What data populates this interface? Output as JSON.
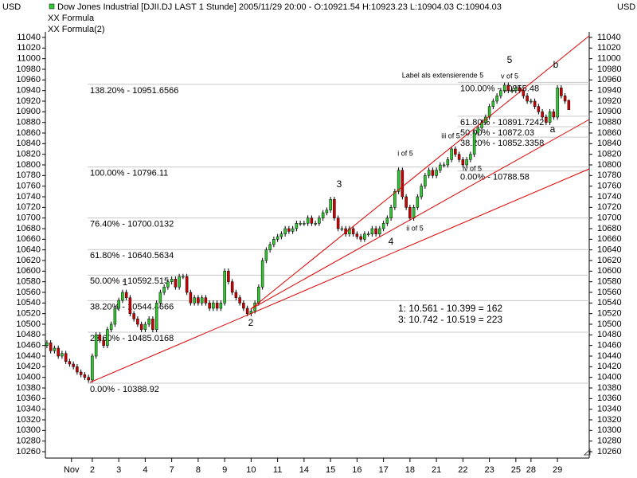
{
  "chart_data": {
    "type": "candlestick",
    "title": "Dow Jones Industrial [DJII.DJ LAST 1 Stunde] 2005/11/29 20:00 - O:10921.54 H:10923.23 L:10904.03 C:10904.03",
    "legend": [
      "XX Formula",
      "XX Formula(2)"
    ],
    "currency": "USD",
    "up_color": "#2ec82e",
    "down_color": "#d00000",
    "line_color": "#e00000",
    "label_color": "#0000c0",
    "xlim": [
      -0.4,
      143.4
    ],
    "xticks": [
      {
        "value": 6.5,
        "label": "Nov"
      },
      {
        "value": 12,
        "label": "2"
      },
      {
        "value": 19,
        "label": "3"
      },
      {
        "value": 26,
        "label": "4"
      },
      {
        "value": 33,
        "label": "7"
      },
      {
        "value": 40,
        "label": "8"
      },
      {
        "value": 47,
        "label": "9"
      },
      {
        "value": 54,
        "label": "10"
      },
      {
        "value": 61,
        "label": "11"
      },
      {
        "value": 68,
        "label": "14"
      },
      {
        "value": 75,
        "label": "15"
      },
      {
        "value": 82,
        "label": "16"
      },
      {
        "value": 89,
        "label": "17"
      },
      {
        "value": 96,
        "label": "18"
      },
      {
        "value": 103,
        "label": "21"
      },
      {
        "value": 110,
        "label": "22"
      },
      {
        "value": 117,
        "label": "23"
      },
      {
        "value": 124,
        "label": "25"
      },
      {
        "value": 128,
        "label": "28"
      },
      {
        "value": 135,
        "label": "29"
      }
    ],
    "ylim": [
      10260,
      11040
    ],
    "yticks": [
      10260,
      10280,
      10300,
      10320,
      10340,
      10360,
      10380,
      10400,
      10420,
      10440,
      10460,
      10480,
      10500,
      10520,
      10540,
      10560,
      10580,
      10600,
      10620,
      10640,
      10660,
      10680,
      10700,
      10720,
      10740,
      10760,
      10780,
      10800,
      10820,
      10840,
      10860,
      10880,
      10900,
      10920,
      10940,
      10960,
      10980,
      11000,
      11020,
      11040
    ],
    "ohlc": [
      [
        10460,
        10470,
        10455,
        10465
      ],
      [
        10465,
        10470,
        10445,
        10450
      ],
      [
        10450,
        10460,
        10445,
        10455
      ],
      [
        10455,
        10460,
        10435,
        10440
      ],
      [
        10440,
        10450,
        10435,
        10445
      ],
      [
        10445,
        10450,
        10425,
        10430
      ],
      [
        10430,
        10435,
        10420,
        10425
      ],
      [
        10425,
        10430,
        10415,
        10420
      ],
      [
        10420,
        10425,
        10405,
        10410
      ],
      [
        10410,
        10415,
        10400,
        10405
      ],
      [
        10405,
        10410,
        10395,
        10400
      ],
      [
        10400,
        10405,
        10390,
        10395
      ],
      [
        10395,
        10445,
        10390,
        10440
      ],
      [
        10440,
        10485,
        10435,
        10480
      ],
      [
        10480,
        10485,
        10465,
        10470
      ],
      [
        10470,
        10475,
        10455,
        10460
      ],
      [
        10460,
        10495,
        10455,
        10490
      ],
      [
        10490,
        10505,
        10485,
        10500
      ],
      [
        10500,
        10535,
        10495,
        10530
      ],
      [
        10530,
        10550,
        10525,
        10545
      ],
      [
        10545,
        10565,
        10540,
        10560
      ],
      [
        10560,
        10565,
        10545,
        10550
      ],
      [
        10550,
        10555,
        10515,
        10520
      ],
      [
        10520,
        10525,
        10505,
        10510
      ],
      [
        10510,
        10515,
        10495,
        10500
      ],
      [
        10500,
        10505,
        10485,
        10490
      ],
      [
        10490,
        10505,
        10485,
        10500
      ],
      [
        10500,
        10515,
        10495,
        10510
      ],
      [
        10510,
        10515,
        10485,
        10490
      ],
      [
        10490,
        10545,
        10485,
        10540
      ],
      [
        10540,
        10565,
        10535,
        10560
      ],
      [
        10560,
        10575,
        10555,
        10570
      ],
      [
        10570,
        10585,
        10565,
        10580
      ],
      [
        10580,
        10590,
        10575,
        10585
      ],
      [
        10585,
        10590,
        10565,
        10570
      ],
      [
        10570,
        10595,
        10565,
        10590
      ],
      [
        10590,
        10595,
        10585,
        10590
      ],
      [
        10590,
        10595,
        10555,
        10560
      ],
      [
        10560,
        10565,
        10535,
        10540
      ],
      [
        10540,
        10555,
        10535,
        10550
      ],
      [
        10550,
        10555,
        10535,
        10540
      ],
      [
        10540,
        10555,
        10535,
        10550
      ],
      [
        10550,
        10555,
        10535,
        10540
      ],
      [
        10540,
        10545,
        10525,
        10530
      ],
      [
        10530,
        10545,
        10525,
        10540
      ],
      [
        10540,
        10545,
        10525,
        10530
      ],
      [
        10530,
        10545,
        10525,
        10540
      ],
      [
        10540,
        10605,
        10535,
        10600
      ],
      [
        10600,
        10605,
        10575,
        10580
      ],
      [
        10580,
        10585,
        10555,
        10560
      ],
      [
        10560,
        10565,
        10545,
        10550
      ],
      [
        10550,
        10555,
        10535,
        10540
      ],
      [
        10540,
        10545,
        10525,
        10530
      ],
      [
        10530,
        10535,
        10515,
        10520
      ],
      [
        10520,
        10530,
        10515,
        10525
      ],
      [
        10525,
        10545,
        10520,
        10540
      ],
      [
        10540,
        10575,
        10535,
        10570
      ],
      [
        10570,
        10625,
        10565,
        10620
      ],
      [
        10620,
        10645,
        10615,
        10640
      ],
      [
        10640,
        10655,
        10635,
        10650
      ],
      [
        10650,
        10665,
        10645,
        10660
      ],
      [
        10660,
        10670,
        10655,
        10665
      ],
      [
        10665,
        10675,
        10660,
        10670
      ],
      [
        10670,
        10685,
        10665,
        10680
      ],
      [
        10680,
        10685,
        10670,
        10675
      ],
      [
        10675,
        10685,
        10670,
        10680
      ],
      [
        10680,
        10695,
        10675,
        10690
      ],
      [
        10690,
        10695,
        10685,
        10690
      ],
      [
        10690,
        10695,
        10685,
        10690
      ],
      [
        10690,
        10705,
        10685,
        10700
      ],
      [
        10700,
        10705,
        10685,
        10690
      ],
      [
        10690,
        10695,
        10685,
        10690
      ],
      [
        10690,
        10705,
        10685,
        10700
      ],
      [
        10700,
        10715,
        10695,
        10710
      ],
      [
        10710,
        10720,
        10705,
        10715
      ],
      [
        10715,
        10740,
        10710,
        10735
      ],
      [
        10735,
        10740,
        10695,
        10700
      ],
      [
        10700,
        10705,
        10675,
        10680
      ],
      [
        10680,
        10685,
        10675,
        10680
      ],
      [
        10680,
        10685,
        10665,
        10670
      ],
      [
        10670,
        10685,
        10665,
        10680
      ],
      [
        10680,
        10685,
        10665,
        10670
      ],
      [
        10670,
        10675,
        10660,
        10665
      ],
      [
        10665,
        10670,
        10655,
        10660
      ],
      [
        10660,
        10675,
        10655,
        10670
      ],
      [
        10670,
        10675,
        10665,
        10670
      ],
      [
        10670,
        10685,
        10665,
        10680
      ],
      [
        10680,
        10685,
        10665,
        10670
      ],
      [
        10670,
        10685,
        10665,
        10680
      ],
      [
        10680,
        10695,
        10675,
        10690
      ],
      [
        10690,
        10705,
        10685,
        10700
      ],
      [
        10700,
        10725,
        10695,
        10720
      ],
      [
        10720,
        10755,
        10715,
        10750
      ],
      [
        10750,
        10795,
        10745,
        10790
      ],
      [
        10790,
        10795,
        10735,
        10740
      ],
      [
        10740,
        10745,
        10715,
        10720
      ],
      [
        10720,
        10725,
        10695,
        10700
      ],
      [
        10700,
        10725,
        10695,
        10720
      ],
      [
        10720,
        10745,
        10715,
        10740
      ],
      [
        10740,
        10765,
        10735,
        10760
      ],
      [
        10760,
        10785,
        10755,
        10780
      ],
      [
        10780,
        10795,
        10775,
        10790
      ],
      [
        10790,
        10795,
        10775,
        10780
      ],
      [
        10780,
        10795,
        10775,
        10790
      ],
      [
        10790,
        10805,
        10785,
        10800
      ],
      [
        10800,
        10805,
        10795,
        10800
      ],
      [
        10800,
        10815,
        10795,
        10810
      ],
      [
        10810,
        10835,
        10805,
        10830
      ],
      [
        10830,
        10835,
        10815,
        10820
      ],
      [
        10820,
        10825,
        10805,
        10810
      ],
      [
        10810,
        10815,
        10795,
        10800
      ],
      [
        10800,
        10815,
        10795,
        10810
      ],
      [
        10810,
        10825,
        10805,
        10820
      ],
      [
        10820,
        10865,
        10815,
        10860
      ],
      [
        10860,
        10875,
        10855,
        10870
      ],
      [
        10870,
        10885,
        10865,
        10880
      ],
      [
        10880,
        10895,
        10875,
        10890
      ],
      [
        10890,
        10915,
        10885,
        10910
      ],
      [
        10910,
        10925,
        10905,
        10920
      ],
      [
        10920,
        10935,
        10915,
        10930
      ],
      [
        10930,
        10945,
        10925,
        10940
      ],
      [
        10940,
        10955,
        10935,
        10950
      ],
      [
        10950,
        10955,
        10935,
        10940
      ],
      [
        10940,
        10945,
        10935,
        10940
      ],
      [
        10940,
        10950,
        10935,
        10945
      ],
      [
        10945,
        10950,
        10935,
        10940
      ],
      [
        10940,
        10945,
        10925,
        10930
      ],
      [
        10930,
        10935,
        10915,
        10920
      ],
      [
        10920,
        10925,
        10915,
        10920
      ],
      [
        10920,
        10925,
        10905,
        10910
      ],
      [
        10910,
        10915,
        10895,
        10900
      ],
      [
        10900,
        10905,
        10885,
        10890
      ],
      [
        10890,
        10895,
        10875,
        10880
      ],
      [
        10880,
        10905,
        10875,
        10900
      ],
      [
        10900,
        10905,
        10885,
        10890
      ],
      [
        10890,
        10950,
        10885,
        10945
      ],
      [
        10945,
        10950,
        10925,
        10930
      ],
      [
        10930,
        10935,
        10915,
        10920
      ],
      [
        10921.54,
        10923.23,
        10904.03,
        10904.03
      ]
    ],
    "fib_left": [
      {
        "label": "138.20% - 10951.6566",
        "value": 10951.6566
      },
      {
        "label": "100.00% - 10796.11",
        "value": 10796.11
      },
      {
        "label": "76.40% - 10700.0132",
        "value": 10700.0132
      },
      {
        "label": "61.80% - 10640.5634",
        "value": 10640.5634
      },
      {
        "label": "50.00% - 10592.515",
        "value": 10592.515
      },
      {
        "label": "38.20% - 10544.4666",
        "value": 10544.4666
      },
      {
        "label": "23.60% - 10485.0168",
        "value": 10485.0168
      },
      {
        "label": "0.00% - 10388.92",
        "value": 10388.92
      }
    ],
    "fib_right": [
      {
        "label": "100.00% - 10955.48",
        "value": 10955.48
      },
      {
        "label": "61.80% - 10891.7242",
        "value": 10891.7242
      },
      {
        "label": "50.00% - 10872.03",
        "value": 10872.03
      },
      {
        "label": "38.20% - 10852.3358",
        "value": 10852.3358
      },
      {
        "label": "0.00% - 10788.58",
        "value": 10788.58
      }
    ],
    "trend_lines": [
      {
        "x": [
          11.4,
          143.4
        ],
        "y": [
          10390.5,
          10792.5
        ]
      },
      {
        "x": [
          53.9,
          143.4
        ],
        "y": [
          10528.5,
          10885.5
        ]
      },
      {
        "x": [
          53.9,
          143.4
        ],
        "y": [
          10528.5,
          11043
        ]
      }
    ],
    "wave_labels": [
      "1",
      "2",
      "3",
      "4",
      "5",
      "i of 5",
      "ii of 5",
      "iii of 5",
      "iv of 5",
      "v of 5",
      "Label als extensierende 5",
      "a",
      "b"
    ],
    "measurements": [
      "1: 10.561 - 10.399 = 162",
      "3: 10.742 - 10.519 = 223"
    ]
  }
}
